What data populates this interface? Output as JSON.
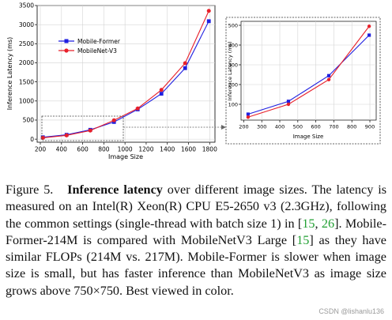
{
  "chart_data": [
    {
      "type": "line",
      "xlabel": "Image Size",
      "ylabel": "Inference Latency (ms)",
      "x": [
        224,
        448,
        672,
        896,
        1120,
        1344,
        1568,
        1792
      ],
      "xticks": [
        200,
        400,
        600,
        800,
        1000,
        1200,
        1400,
        1600,
        1800
      ],
      "yticks": [
        0,
        500,
        1000,
        1500,
        2000,
        2500,
        3000,
        3500
      ],
      "xlim": [
        170,
        1850
      ],
      "ylim": [
        -80,
        3500
      ],
      "grid": true,
      "legend_position": "upper-left",
      "series": [
        {
          "name": "Mobile-Former",
          "color": "#1f1fe0",
          "marker": "square",
          "values": [
            50,
            115,
            245,
            450,
            780,
            1190,
            1860,
            3090
          ]
        },
        {
          "name": "MobileNet-V3",
          "color": "#e8202a",
          "marker": "circle",
          "values": [
            35,
            100,
            225,
            495,
            805,
            1290,
            1990,
            3360
          ]
        }
      ]
    },
    {
      "type": "line",
      "xlabel": "Image Size",
      "ylabel": "Inference Latency (ms)",
      "x": [
        224,
        448,
        672,
        896
      ],
      "xticks": [
        200,
        300,
        400,
        500,
        600,
        700,
        800,
        900
      ],
      "yticks": [
        100,
        200,
        300,
        400,
        500
      ],
      "xlim": [
        185,
        935
      ],
      "ylim": [
        20,
        520
      ],
      "grid": true,
      "series": [
        {
          "name": "Mobile-Former",
          "color": "#1f1fe0",
          "marker": "square",
          "values": [
            50,
            115,
            245,
            450
          ]
        },
        {
          "name": "MobileNet-V3",
          "color": "#e8202a",
          "marker": "circle",
          "values": [
            35,
            100,
            225,
            495
          ]
        }
      ]
    }
  ],
  "caption": {
    "figure_label": "Figure 5.",
    "bold_title": "Inference latency",
    "text_1": " over different image sizes.  The latency is measured on an Intel(R) Xeon(R) CPU E5-2650 v3 (2.3GHz), following the common settings (single-thread with batch size 1) in [",
    "cite_1": "15",
    "text_2": ", ",
    "cite_2": "26",
    "text_3": "]. Mobile-Former-214M is compared with MobileNetV3 Large [",
    "cite_3": "15",
    "text_4": "] as they have similar FLOPs (214M vs. 217M). Mobile-Former is slower when image size is small, but has faster inference than MobileNetV3 as image size grows above 750×750. Best viewed in color."
  },
  "watermark": "CSDN @lishanlu136"
}
